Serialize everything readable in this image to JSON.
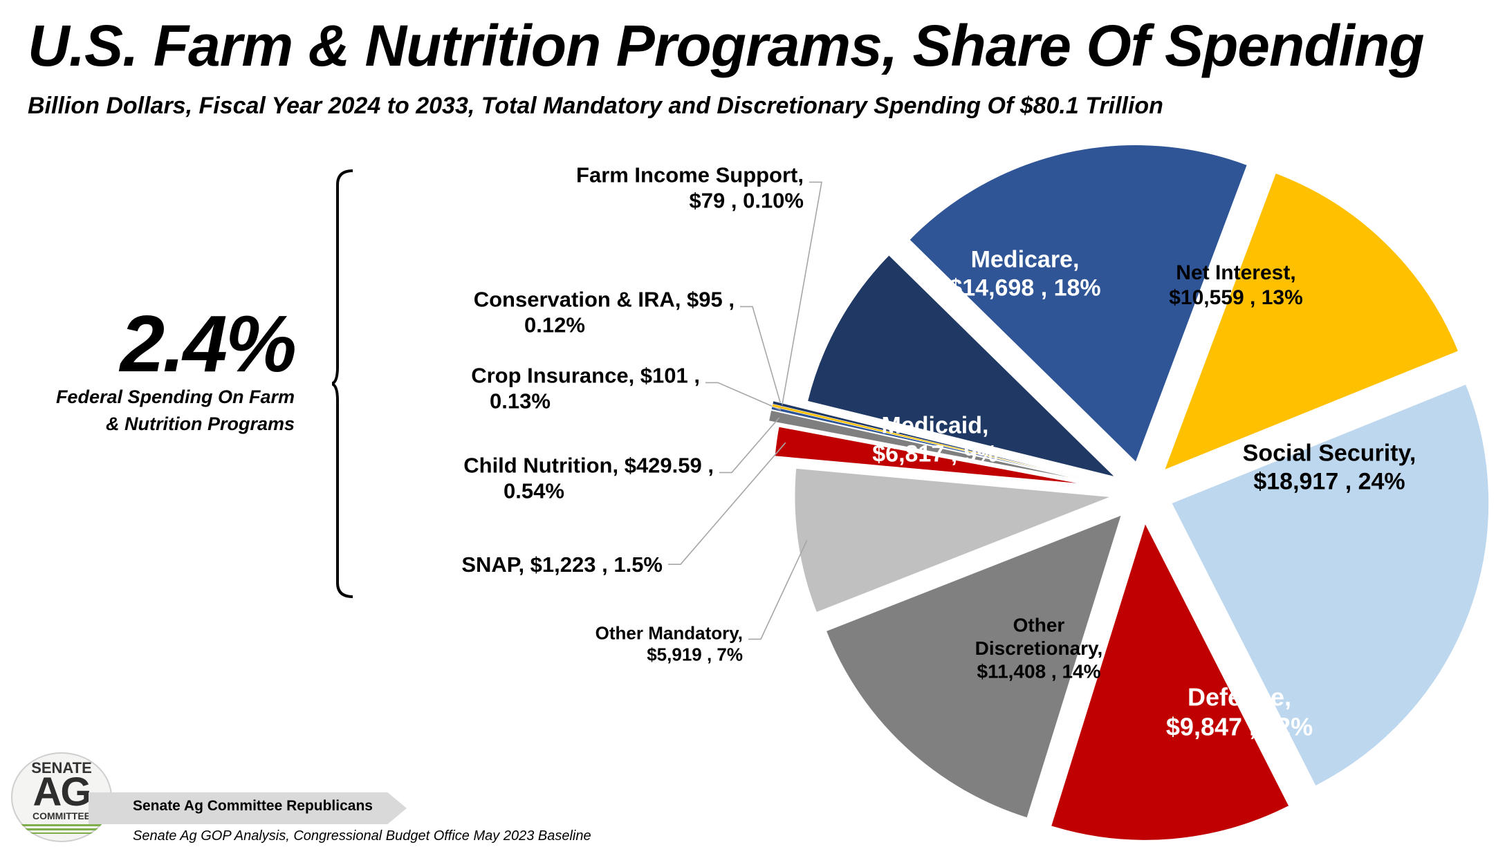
{
  "title": "U.S. Farm & Nutrition Programs, Share Of Spending",
  "subtitle": "Billion Dollars, Fiscal Year 2024 to 2033, Total Mandatory and Discretionary Spending Of $80.1 Trillion",
  "callout": {
    "percent": "2.4%",
    "description_line1": "Federal Spending On Farm",
    "description_line2": "& Nutrition Programs"
  },
  "footer": {
    "organization": "Senate Ag Committee Republicans",
    "source": "Senate Ag GOP Analysis, Congressional Budget Office May 2023 Baseline"
  },
  "logo": {
    "line1": "SENATE",
    "line2": "AG",
    "line3": "COMMITTEE"
  },
  "chart_data": {
    "type": "pie",
    "unit": "Billion Dollars",
    "total_label": "$80.1 Trillion",
    "slices": [
      {
        "name": "Social Security",
        "label_lines": [
          "Social Security,",
          "$18,917 , 24%"
        ],
        "value": 18917,
        "percent": 24,
        "color": "#bdd7ee",
        "text_color": "#000000"
      },
      {
        "name": "Defense",
        "label_lines": [
          "Defense,",
          "$9,847 , 12%"
        ],
        "value": 9847,
        "percent": 12,
        "color": "#c00000",
        "text_color": "#ffffff"
      },
      {
        "name": "Other Discretionary",
        "label_lines": [
          "Other",
          "Discretionary,",
          "$11,408 , 14%"
        ],
        "value": 11408,
        "percent": 14,
        "color": "#808080",
        "text_color": "#000000"
      },
      {
        "name": "Other Mandatory",
        "label_lines": [
          "Other Mandatory,",
          "$5,919 , 7%"
        ],
        "value": 5919,
        "percent": 7,
        "color": "#c0c0c0",
        "text_color": "#000000"
      },
      {
        "name": "SNAP",
        "label_lines": [
          "SNAP,  $1,223 , 1.5%"
        ],
        "value": 1223,
        "percent": 1.5,
        "color": "#c00000",
        "text_color": "#000000"
      },
      {
        "name": "Child Nutrition",
        "label_lines": [
          "Child Nutrition,  $429.59 ,",
          "0.54%"
        ],
        "value": 429.59,
        "percent": 0.54,
        "color": "#7f7f7f",
        "text_color": "#000000"
      },
      {
        "name": "Crop Insurance",
        "label_lines": [
          "Crop Insurance,  $101 ,",
          "0.13%"
        ],
        "value": 101,
        "percent": 0.13,
        "color": "#2f5597",
        "text_color": "#000000"
      },
      {
        "name": "Conservation & IRA",
        "label_lines": [
          "Conservation & IRA,  $95 ,",
          "0.12%"
        ],
        "value": 95,
        "percent": 0.12,
        "color": "#ffc000",
        "text_color": "#000000"
      },
      {
        "name": "Farm Income Support",
        "label_lines": [
          "Farm Income Support,",
          "$79 , 0.10%"
        ],
        "value": 79,
        "percent": 0.1,
        "color": "#203864",
        "text_color": "#000000"
      },
      {
        "name": "Medicaid",
        "label_lines": [
          "Medicaid,",
          "$6,817 , 9%"
        ],
        "value": 6817,
        "percent": 9,
        "color": "#1f3864",
        "text_color": "#ffffff"
      },
      {
        "name": "Medicare",
        "label_lines": [
          "Medicare,",
          "$14,698 , 18%"
        ],
        "value": 14698,
        "percent": 18,
        "color": "#2f5597",
        "text_color": "#ffffff"
      },
      {
        "name": "Net Interest",
        "label_lines": [
          "Net Interest,",
          "$10,559 , 13%"
        ],
        "value": 10559,
        "percent": 13,
        "color": "#ffc000",
        "text_color": "#000000"
      }
    ],
    "legend": "none"
  }
}
